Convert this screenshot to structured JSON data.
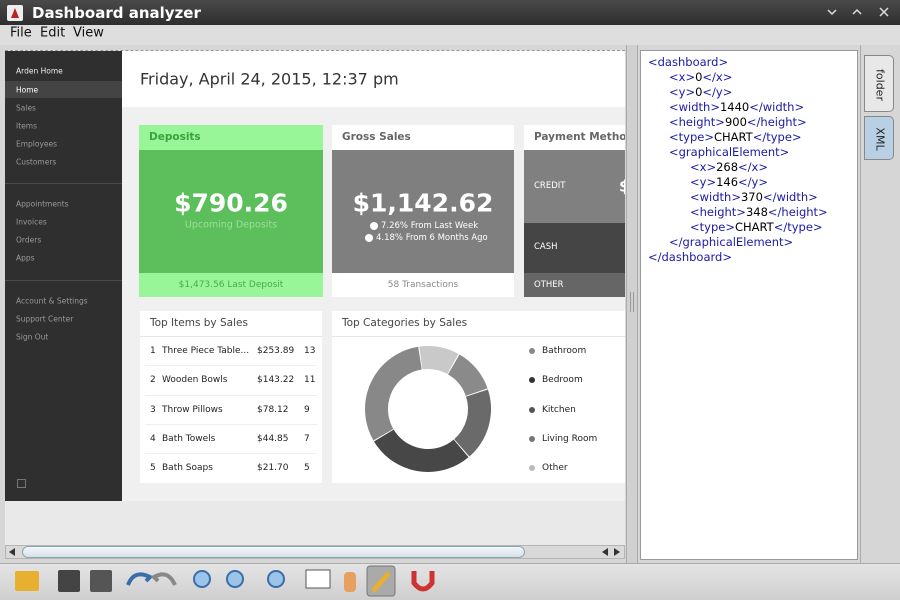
{
  "window": {
    "title": "Dashboard analyzer"
  },
  "menu": [
    "File",
    "Edit",
    "View"
  ],
  "sidebar": {
    "header": "Arden Home",
    "groups": [
      [
        "Home",
        "Sales",
        "Items",
        "Employees",
        "Customers"
      ],
      [
        "Appointments",
        "Invoices",
        "Orders",
        "Apps"
      ],
      [
        "Account & Settings",
        "Support Center",
        "Sign Out"
      ]
    ]
  },
  "dashboard": {
    "date": "Friday, April 24, 2015, 12:37 pm",
    "deposits": {
      "title": "Deposits",
      "amount": "$790.26",
      "subtitle": "Upcoming Deposits",
      "footer": "$1,473.56 Last Deposit"
    },
    "gross_sales": {
      "title": "Gross Sales",
      "amount": "$1,142.62",
      "changes": [
        "7.26% From Last Week",
        "4.18% From 6 Months Ago"
      ],
      "footer": "58 Transactions"
    },
    "payment_methods": {
      "title": "Payment Methods",
      "methods": [
        "CREDIT",
        "CASH",
        "OTHER"
      ],
      "credit_amount": "$"
    },
    "top_items": {
      "title": "Top Items by Sales",
      "rows": [
        [
          1,
          "Three Piece Table...",
          "$253.89",
          13
        ],
        [
          2,
          "Wooden Bowls",
          "$143.22",
          11
        ],
        [
          3,
          "Throw Pillows",
          "$78.12",
          9
        ],
        [
          4,
          "Bath Towels",
          "$44.85",
          7
        ],
        [
          5,
          "Bath Soaps",
          "$21.70",
          5
        ]
      ]
    },
    "top_categories": {
      "title": "Top Categories by Sales",
      "legend": [
        "Bathroom",
        "Bedroom",
        "Kitchen",
        "Living Room",
        "Other"
      ]
    }
  },
  "xml_panel": {
    "lines": [
      "<dashboard>",
      "<x>0</x>",
      "<y>0</y>",
      "<width>1440</width>",
      "<height>900</height>",
      "<type>CHART</type>",
      "<graphicalElement>",
      "<x>268</x>",
      "<y>146</y>",
      "<width>370</width>",
      "<height>348</height>",
      "<type>CHART</type>",
      "</graphicalElement>",
      "</dashboard>"
    ]
  },
  "tabs": [
    "folder",
    "XML"
  ]
}
